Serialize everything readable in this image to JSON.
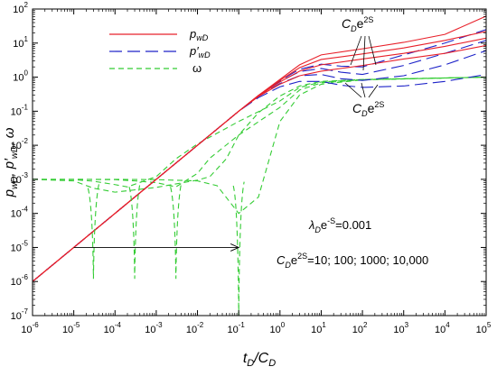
{
  "chart_data": {
    "type": "line",
    "xscale": "log",
    "yscale": "log",
    "xlim": [
      1e-06,
      100000.0
    ],
    "ylim": [
      1e-07,
      100.0
    ],
    "x_tick_exponents": [
      -6,
      -5,
      -4,
      -3,
      -2,
      -1,
      0,
      1,
      2,
      3,
      4,
      5
    ],
    "y_tick_exponents": [
      -7,
      -6,
      -5,
      -4,
      -3,
      -2,
      -1,
      0,
      1,
      2
    ],
    "tick_base": "10",
    "xlabel": {
      "main": "t",
      "sub1": "D",
      "mid": "/C",
      "sub2": "D"
    },
    "ylabel": {
      "p1": "p",
      "s1": "wD",
      "sep1": ", p′",
      "s2": "wD",
      "sep2": ", ω"
    },
    "legend": {
      "placement": "top-left",
      "entries": [
        {
          "key": "p",
          "main": "p",
          "sub": "wD",
          "color": "#e8202a",
          "dash": "solid"
        },
        {
          "key": "pd",
          "main": "p′",
          "sub": "wD",
          "color": "#1d22c8",
          "dash": "long-dash"
        },
        {
          "key": "w",
          "main": "ω",
          "sub": "",
          "color": "#33cc33",
          "dash": "dash"
        }
      ]
    },
    "annotations": {
      "cd_top": {
        "main": "C",
        "sub": "D",
        "rest": "e",
        "sup": "2S"
      },
      "cd_mid": {
        "main": "C",
        "sub": "D",
        "rest": "e",
        "sup": "2S"
      },
      "lambda": {
        "sym": "λ",
        "sub": "D",
        "rest": "e",
        "sup": "-S",
        "value": "=0.001"
      },
      "arrow_label": {
        "main": "C",
        "sub": "D",
        "rest": "e",
        "sup": "2S",
        "value": "=10; 100; 1000; 10,000"
      }
    },
    "grid": false,
    "cde2s_values": [
      10,
      100,
      1000,
      10000
    ],
    "series": [
      {
        "key": "p",
        "label": "CDe2S=10",
        "points": [
          [
            1e-06,
            1e-06
          ],
          [
            0.1,
            0.1
          ],
          [
            0.3,
            0.27
          ],
          [
            1,
            0.62
          ],
          [
            3,
            1.1
          ],
          [
            10,
            1.5
          ],
          [
            100,
            2.2
          ],
          [
            1000,
            3.4
          ],
          [
            10000,
            5
          ],
          [
            100000,
            8.5
          ]
        ]
      },
      {
        "key": "p",
        "label": "CDe2S=100",
        "points": [
          [
            1e-06,
            1e-06
          ],
          [
            0.1,
            0.1
          ],
          [
            0.3,
            0.28
          ],
          [
            1,
            0.72
          ],
          [
            3,
            1.5
          ],
          [
            10,
            2.3
          ],
          [
            100,
            3.4
          ],
          [
            1000,
            5
          ],
          [
            10000,
            8
          ],
          [
            100000,
            14
          ]
        ]
      },
      {
        "key": "p",
        "label": "CDe2S=1000",
        "points": [
          [
            1e-06,
            1e-06
          ],
          [
            0.1,
            0.1
          ],
          [
            0.3,
            0.29
          ],
          [
            1,
            0.8
          ],
          [
            3,
            1.9
          ],
          [
            10,
            3.3
          ],
          [
            100,
            4.8
          ],
          [
            1000,
            7.2
          ],
          [
            10000,
            12
          ],
          [
            100000,
            22
          ]
        ]
      },
      {
        "key": "p",
        "label": "CDe2S=10000",
        "points": [
          [
            1e-06,
            1e-06
          ],
          [
            0.1,
            0.1
          ],
          [
            0.3,
            0.29
          ],
          [
            1,
            0.86
          ],
          [
            3,
            2.3
          ],
          [
            10,
            4.5
          ],
          [
            100,
            6.8
          ],
          [
            1000,
            10.5
          ],
          [
            10000,
            18
          ],
          [
            100000,
            62
          ]
        ]
      },
      {
        "key": "pd",
        "label": "CDe2S=10",
        "points": [
          [
            1e-06,
            1e-06
          ],
          [
            0.1,
            0.1
          ],
          [
            0.3,
            0.25
          ],
          [
            1,
            0.52
          ],
          [
            3,
            0.75
          ],
          [
            10,
            0.75
          ],
          [
            30,
            0.58
          ],
          [
            100,
            0.5
          ],
          [
            1000,
            0.55
          ],
          [
            10000,
            0.75
          ],
          [
            100000,
            1.2
          ]
        ]
      },
      {
        "key": "pd",
        "label": "CDe2S=100",
        "points": [
          [
            1e-06,
            1e-06
          ],
          [
            0.1,
            0.1
          ],
          [
            0.3,
            0.27
          ],
          [
            1,
            0.65
          ],
          [
            3,
            1.1
          ],
          [
            10,
            1.2
          ],
          [
            30,
            0.9
          ],
          [
            100,
            0.8
          ],
          [
            1000,
            1.1
          ],
          [
            10000,
            2.3
          ],
          [
            100000,
            6
          ]
        ]
      },
      {
        "key": "pd",
        "label": "CDe2S=1000",
        "points": [
          [
            1e-06,
            1e-06
          ],
          [
            0.1,
            0.1
          ],
          [
            0.3,
            0.28
          ],
          [
            1,
            0.75
          ],
          [
            3,
            1.45
          ],
          [
            10,
            1.8
          ],
          [
            30,
            1.4
          ],
          [
            100,
            1.2
          ],
          [
            1000,
            2.2
          ],
          [
            10000,
            5
          ],
          [
            100000,
            12
          ]
        ]
      },
      {
        "key": "pd",
        "label": "CDe2S=10000",
        "points": [
          [
            1e-06,
            1e-06
          ],
          [
            0.1,
            0.1
          ],
          [
            0.3,
            0.28
          ],
          [
            1,
            0.8
          ],
          [
            3,
            1.7
          ],
          [
            10,
            2.4
          ],
          [
            30,
            2.1
          ],
          [
            100,
            2
          ],
          [
            1000,
            4.5
          ],
          [
            10000,
            10
          ],
          [
            100000,
            25
          ]
        ]
      },
      {
        "key": "w",
        "label": "CDe2S=10",
        "points": [
          [
            1e-06,
            0.001
          ],
          [
            1e-05,
            0.0009
          ],
          [
            3e-05,
            0.00055
          ],
          [
            0.0001,
            0.00042
          ],
          [
            0.001,
            0.00058
          ],
          [
            0.01,
            0.00095
          ],
          [
            0.02,
            0.0012
          ],
          [
            0.05,
            0.004
          ],
          [
            0.1,
            0.02
          ],
          [
            0.3,
            0.09
          ],
          [
            1,
            0.28
          ],
          [
            3,
            0.55
          ],
          [
            10,
            0.75
          ],
          [
            100,
            0.85
          ],
          [
            1000,
            0.9
          ],
          [
            10000,
            0.95
          ],
          [
            100000,
            1
          ]
        ]
      },
      {
        "key": "w",
        "label": "CDe2S=100",
        "points": [
          [
            1e-06,
            0.001
          ],
          [
            1e-05,
            0.00098
          ],
          [
            3e-05,
            0.00088
          ],
          [
            0.0001,
            0.0007
          ],
          [
            0.0002,
            0.0006
          ],
          [
            0.001,
            0.0012
          ],
          [
            0.003,
            0.004
          ],
          [
            0.01,
            0.011
          ],
          [
            0.1,
            0.05
          ],
          [
            1,
            0.2
          ],
          [
            3,
            0.5
          ],
          [
            10,
            0.72
          ],
          [
            100,
            0.85
          ],
          [
            100000,
            1
          ]
        ]
      },
      {
        "key": "w",
        "label": "CDe2S=1000",
        "points": [
          [
            1e-06,
            0.001
          ],
          [
            1e-05,
            0.001
          ],
          [
            0.0001,
            0.00098
          ],
          [
            0.0003,
            0.0009
          ],
          [
            0.001,
            0.0008
          ],
          [
            0.003,
            0.0006
          ],
          [
            0.01,
            0.0015
          ],
          [
            0.02,
            0.0042
          ],
          [
            0.1,
            0.02
          ],
          [
            1,
            0.13
          ],
          [
            3,
            0.42
          ],
          [
            10,
            0.68
          ],
          [
            100,
            0.84
          ],
          [
            100000,
            1
          ]
        ]
      },
      {
        "key": "w",
        "label": "CDe2S=10000",
        "points": [
          [
            1e-06,
            0.001
          ],
          [
            0.0001,
            0.001
          ],
          [
            0.001,
            0.00098
          ],
          [
            0.01,
            0.0009
          ],
          [
            0.03,
            0.00065
          ],
          [
            0.1,
            0.0001
          ],
          [
            0.3,
            0.0003
          ],
          [
            1,
            0.05
          ],
          [
            3,
            0.3
          ],
          [
            10,
            0.62
          ],
          [
            100,
            0.83
          ],
          [
            100000,
            1
          ]
        ]
      }
    ],
    "omega_spikes": [
      {
        "x": 3e-05,
        "top": 0.00055,
        "bottom": 1.2e-06
      },
      {
        "x": 0.0003,
        "top": 0.0006,
        "bottom": 1.2e-06
      },
      {
        "x": 0.003,
        "top": 0.0006,
        "bottom": 1.2e-06
      },
      {
        "x": 0.1,
        "top": 0.00065,
        "bottom": 1e-07
      }
    ],
    "arrow": {
      "from": 1e-05,
      "to": 0.1,
      "y": 1e-05
    }
  }
}
